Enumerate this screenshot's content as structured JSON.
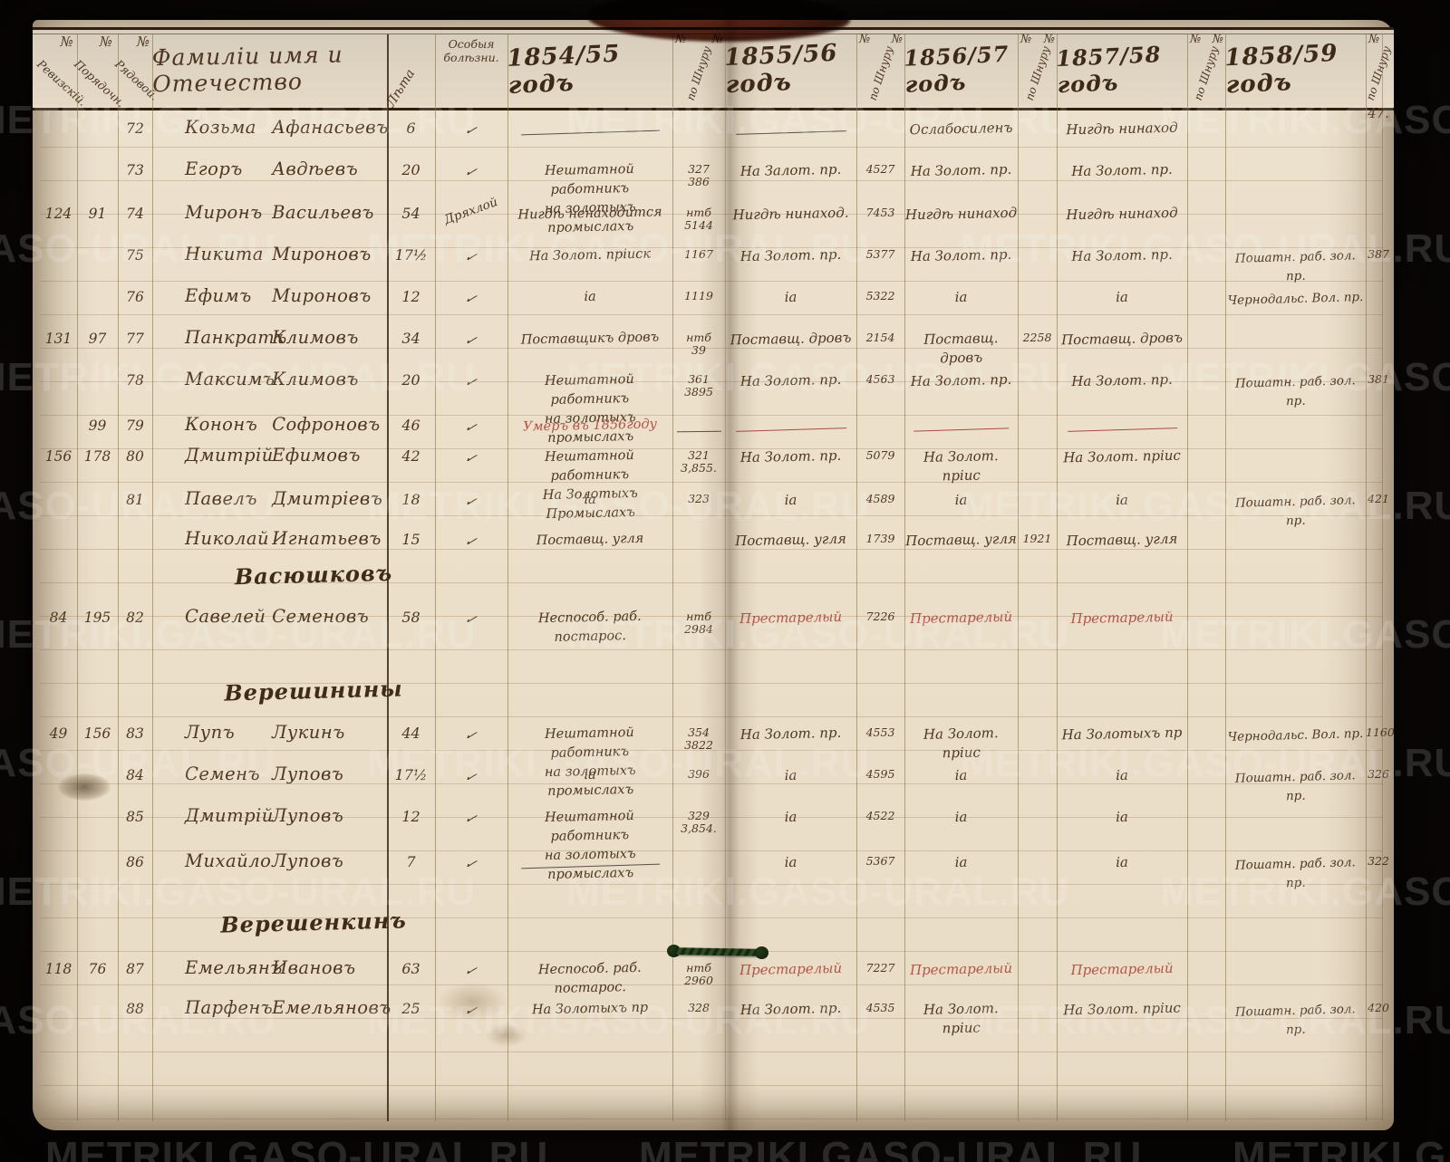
{
  "watermark": "METRIKI.GASO-URAL.RU",
  "page_number": "47.",
  "header": {
    "col_rev_n": "№",
    "col_rev": "Ревизскій.",
    "col_ord_n": "№",
    "col_ord": "Порядочн.",
    "col_row_n": "№",
    "col_row": "Рядовой.",
    "col_name": "Фамиліи имя и Отечество",
    "col_age": "Лѣта",
    "col_health": "Особыя болѣзни.",
    "col_shnur_n": "№",
    "col_shnur": "по Шнуру",
    "years": [
      "1854/55 годъ",
      "1855/56 годъ",
      "1856/57 годъ",
      "1857/58 годъ",
      "1858/59 годъ"
    ]
  },
  "rows": [
    {
      "type": "person",
      "num": "72",
      "name": "Козьма",
      "patr": "Афанасьевъ",
      "age": "6",
      "health": "✓",
      "y54": "—",
      "y55": "—",
      "y56": "Ослабосиленъ",
      "y57": "Нигдѣ нинаход"
    },
    {
      "type": "person",
      "num": "73",
      "name": "Егоръ",
      "patr": "Авдѣевъ",
      "age": "20",
      "health": "✓",
      "y54": "Нештатной работникъ\nна золотыхъ промыслахъ",
      "s54": "327\n386",
      "y55": "На Залот. пр.",
      "s55": "4527",
      "y56": "На Золот. пр.",
      "y57": "На Золот. пр."
    },
    {
      "type": "person",
      "rev": "124",
      "ord": "91",
      "num": "74",
      "name": "Миронъ",
      "patr": "Васильевъ",
      "age": "54",
      "health": "Дряхлой",
      "y54": "Нигдѣ ненаходится",
      "s54": "нтб\n5144",
      "y55": "Нигдѣ нинаход.",
      "s55": "7453",
      "y56": "Нигдѣ нинаход",
      "y57": "Нигдѣ нинаход"
    },
    {
      "type": "person",
      "num": "75",
      "name": "Никита",
      "patr": "Мироновъ",
      "age": "17½",
      "health": "✓",
      "y54": "На Золот. пріиск",
      "s54": "1167",
      "y55": "На Золот. пр.",
      "s55": "5377",
      "y56": "На Золот. пр.",
      "y57": "На Золот. пр.",
      "y58": "Пошатн. раб. зол. пр.",
      "s58": "387"
    },
    {
      "type": "person",
      "num": "76",
      "name": "Ефимъ",
      "patr": "Мироновъ",
      "age": "12",
      "health": "✓",
      "y54": "ia",
      "s54": "1119",
      "y55": "ia",
      "s55": "5322",
      "y56": "ia",
      "y57": "ia",
      "y58": "Чернодальс. Вол. пр."
    },
    {
      "type": "person",
      "rev": "131",
      "ord": "97",
      "num": "77",
      "name": "Панкратъ",
      "patr": "Климовъ",
      "age": "34",
      "health": "✓",
      "y54": "Поставщикъ дровъ",
      "s54": "нтб\n39",
      "y55": "Поставщ. дровъ",
      "s55": "2154",
      "y56": "Поставщ. дровъ",
      "s56": "2258",
      "y57": "Поставщ. дровъ"
    },
    {
      "type": "person",
      "num": "78",
      "name": "Максимъ",
      "patr": "Климовъ",
      "age": "20",
      "health": "✓",
      "y54": "Нештатной работникъ\nна золотыхъ промыслахъ",
      "s54": "361\n3895",
      "y55": "На Золот. пр.",
      "s55": "4563",
      "y56": "На Золот. пр.",
      "y57": "На Золот. пр.",
      "y58": "Пошатн. раб. зол. пр.",
      "s58": "381"
    },
    {
      "type": "person",
      "ord": "99",
      "num": "79",
      "name": "Кононъ",
      "patr": "Софроновъ",
      "age": "46",
      "health": "✓",
      "y54": {
        "text": "Умеръ въ 1856году",
        "red": true
      },
      "s54": "—",
      "y55": {
        "text": "—",
        "red": true
      },
      "y56": {
        "text": "—",
        "red": true
      },
      "y57": {
        "text": "—",
        "red": true
      }
    },
    {
      "type": "person",
      "rev": "156",
      "ord": "178",
      "num": "80",
      "name": "Дмитрій",
      "patr": "Ефимовъ",
      "age": "42",
      "health": "✓",
      "y54": "Нештатной работникъ\nНа Золотыхъ Промыслахъ",
      "s54": "321\n3,855.",
      "y55": "На Золот. пр.",
      "s55": "5079",
      "y56": "На Золот. пріис",
      "y57": "На Золот. пріис"
    },
    {
      "type": "person",
      "num": "81",
      "name": "Павелъ",
      "patr": "Дмитріевъ",
      "age": "18",
      "health": "✓",
      "y54": "ia",
      "s54": "323",
      "y55": "ia",
      "s55": "4589",
      "y56": "ia",
      "y57": "ia",
      "y58": "Пошатн. раб. зол. пр.",
      "s58": "421"
    },
    {
      "type": "person",
      "name": "Николай",
      "patr": "Игнатьевъ",
      "age": "15",
      "health": "✓",
      "y54": "Поставщ. угля",
      "y55": "Поставщ. угля",
      "s55": "1739",
      "y56": "Поставщ. угля",
      "s56": "1921",
      "y57": "Поставщ. угля"
    },
    {
      "type": "section",
      "title": "Васюшковъ"
    },
    {
      "type": "person",
      "rev": "84",
      "ord": "195",
      "num": "82",
      "name": "Савелей",
      "patr": "Семеновъ",
      "age": "58",
      "health": "✓",
      "y54": "Неспособ. раб. постарос.",
      "s54": "нтб\n2984",
      "y55": {
        "text": "Престарелый",
        "red": true
      },
      "s55": "7226",
      "y56": {
        "text": "Престарелый",
        "red": true
      },
      "y57": {
        "text": "Престарелый",
        "red": true
      }
    },
    {
      "type": "section",
      "title": "Верешинины"
    },
    {
      "type": "person",
      "rev": "49",
      "ord": "156",
      "num": "83",
      "name": "Лупъ",
      "patr": "Лукинъ",
      "age": "44",
      "health": "✓",
      "y54": "Нештатной работникъ\nна золотыхъ промыслахъ",
      "s54": "354\n3822",
      "y55": "На Золот. пр.",
      "s55": "4553",
      "y56": "На Золот. пріис",
      "y57": "На Золотыхъ пр",
      "y58": "Чернодальс. Вол. пр.",
      "s58": "1160"
    },
    {
      "type": "person",
      "num": "84",
      "name": "Семенъ",
      "patr": "Луповъ",
      "age": "17½",
      "health": "✓",
      "y54": "ia",
      "s54": "396",
      "y55": "ia",
      "s55": "4595",
      "y56": "ia",
      "y57": "ia",
      "y58": "Пошатн. раб. зол. пр.",
      "s58": "326"
    },
    {
      "type": "person",
      "num": "85",
      "name": "Дмитрій",
      "patr": "Луповъ",
      "age": "12",
      "health": "✓",
      "y54": "Нештатной работникъ\nна золотыхъ промыслахъ",
      "s54": "329\n3,854.",
      "y55": "ia",
      "s55": "4522",
      "y56": "ia",
      "y57": "ia"
    },
    {
      "type": "person",
      "num": "86",
      "name": "Михайло",
      "patr": "Луповъ",
      "age": "7",
      "health": "✓",
      "y54": "—",
      "y55": "ia",
      "s55": "5367",
      "y56": "ia",
      "y57": "ia",
      "y58": "Пошатн. раб. зол. пр.",
      "s58": "322"
    },
    {
      "type": "section",
      "title": "Верешенкинъ"
    },
    {
      "type": "person",
      "rev": "118",
      "ord": "76",
      "num": "87",
      "name": "Емельянъ",
      "patr": "Ивановъ",
      "age": "63",
      "health": "✓",
      "y54": "Неспособ. раб. постарос.",
      "s54": "нтб\n2960",
      "y55": {
        "text": "Престарелый",
        "red": true
      },
      "s55": "7227",
      "y56": {
        "text": "Престарелый",
        "red": true
      },
      "y57": {
        "text": "Престарелый",
        "red": true
      }
    },
    {
      "type": "person",
      "num": "88",
      "name": "Парфенъ",
      "patr": "Емельяновъ",
      "age": "25",
      "health": "✓",
      "y54": "На Золотыхъ пр",
      "s54": "328",
      "y55": "На Золот. пр.",
      "s55": "4535",
      "y56": "На Золот. пріис",
      "y57": "На Золот. пріис",
      "y58": "Пошатн. раб. зол. пр.",
      "s58": "420"
    }
  ]
}
